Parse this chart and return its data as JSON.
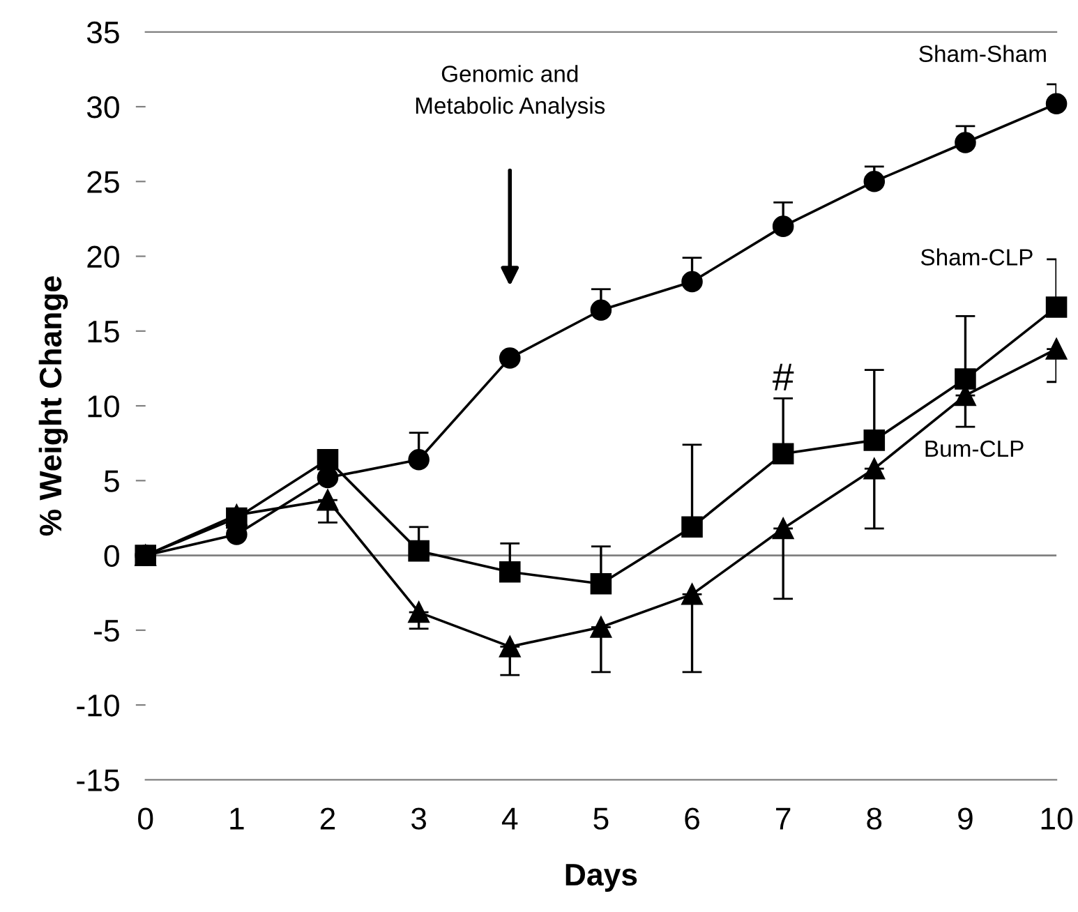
{
  "chart_data": {
    "type": "line",
    "xlabel": "Days",
    "ylabel": "% Weight Change",
    "x": [
      0,
      1,
      2,
      3,
      4,
      5,
      6,
      7,
      8,
      9,
      10
    ],
    "series": [
      {
        "name": "Sham-Sham",
        "color": "#000000",
        "marker": "circle",
        "values": [
          0,
          1.4,
          5.2,
          6.4,
          13.2,
          16.4,
          18.3,
          22,
          25,
          27.6,
          30.2
        ],
        "errors": [
          null,
          null,
          null,
          [
            6.4,
            8.2
          ],
          null,
          [
            16.4,
            17.8
          ],
          [
            18.3,
            19.9
          ],
          [
            22,
            23.6
          ],
          [
            25,
            26
          ],
          [
            27.6,
            28.7
          ],
          [
            30.2,
            31.5
          ]
        ]
      },
      {
        "name": "Sham-CLP",
        "color": "#000000",
        "marker": "square",
        "values": [
          0,
          2.5,
          6.4,
          0.3,
          -1.1,
          -1.9,
          1.9,
          6.8,
          7.7,
          11.8,
          16.6
        ],
        "errors": [
          null,
          null,
          null,
          [
            0.3,
            1.9
          ],
          [
            -1.1,
            0.8
          ],
          [
            -1.9,
            0.6
          ],
          [
            1.9,
            7.4
          ],
          [
            6.8,
            10.5
          ],
          [
            7.7,
            12.4
          ],
          [
            11.8,
            16
          ],
          [
            16.6,
            19.8
          ]
        ]
      },
      {
        "name": "Bum-CLP",
        "color": "#000000",
        "marker": "triangle",
        "values": [
          0,
          2.7,
          3.7,
          -3.8,
          -6.1,
          -4.8,
          -2.6,
          1.8,
          5.8,
          10.7,
          13.8
        ],
        "errors": [
          null,
          null,
          [
            2.2,
            3.7
          ],
          [
            -4.9,
            -3.8
          ],
          [
            -8,
            -6.1
          ],
          [
            -7.8,
            -4.8
          ],
          [
            -7.8,
            -2.6
          ],
          [
            -2.9,
            1.8
          ],
          [
            1.8,
            5.8
          ],
          [
            8.6,
            10.7
          ],
          [
            11.6,
            13.8
          ]
        ]
      }
    ],
    "xlim": [
      0,
      10
    ],
    "xticks": [
      0,
      1,
      2,
      3,
      4,
      5,
      6,
      7,
      8,
      9,
      10
    ],
    "ylim": [
      -15,
      35
    ],
    "yticks": [
      -15,
      -10,
      -5,
      0,
      5,
      10,
      15,
      20,
      25,
      30,
      35
    ],
    "ref_lines": [
      {
        "axis": "y",
        "value": 0,
        "color": "#808080"
      }
    ],
    "annotations": [
      "Genomic and\nMetabolic Analysis",
      "#"
    ],
    "grid": false,
    "legend": false,
    "line_style": "solid"
  }
}
